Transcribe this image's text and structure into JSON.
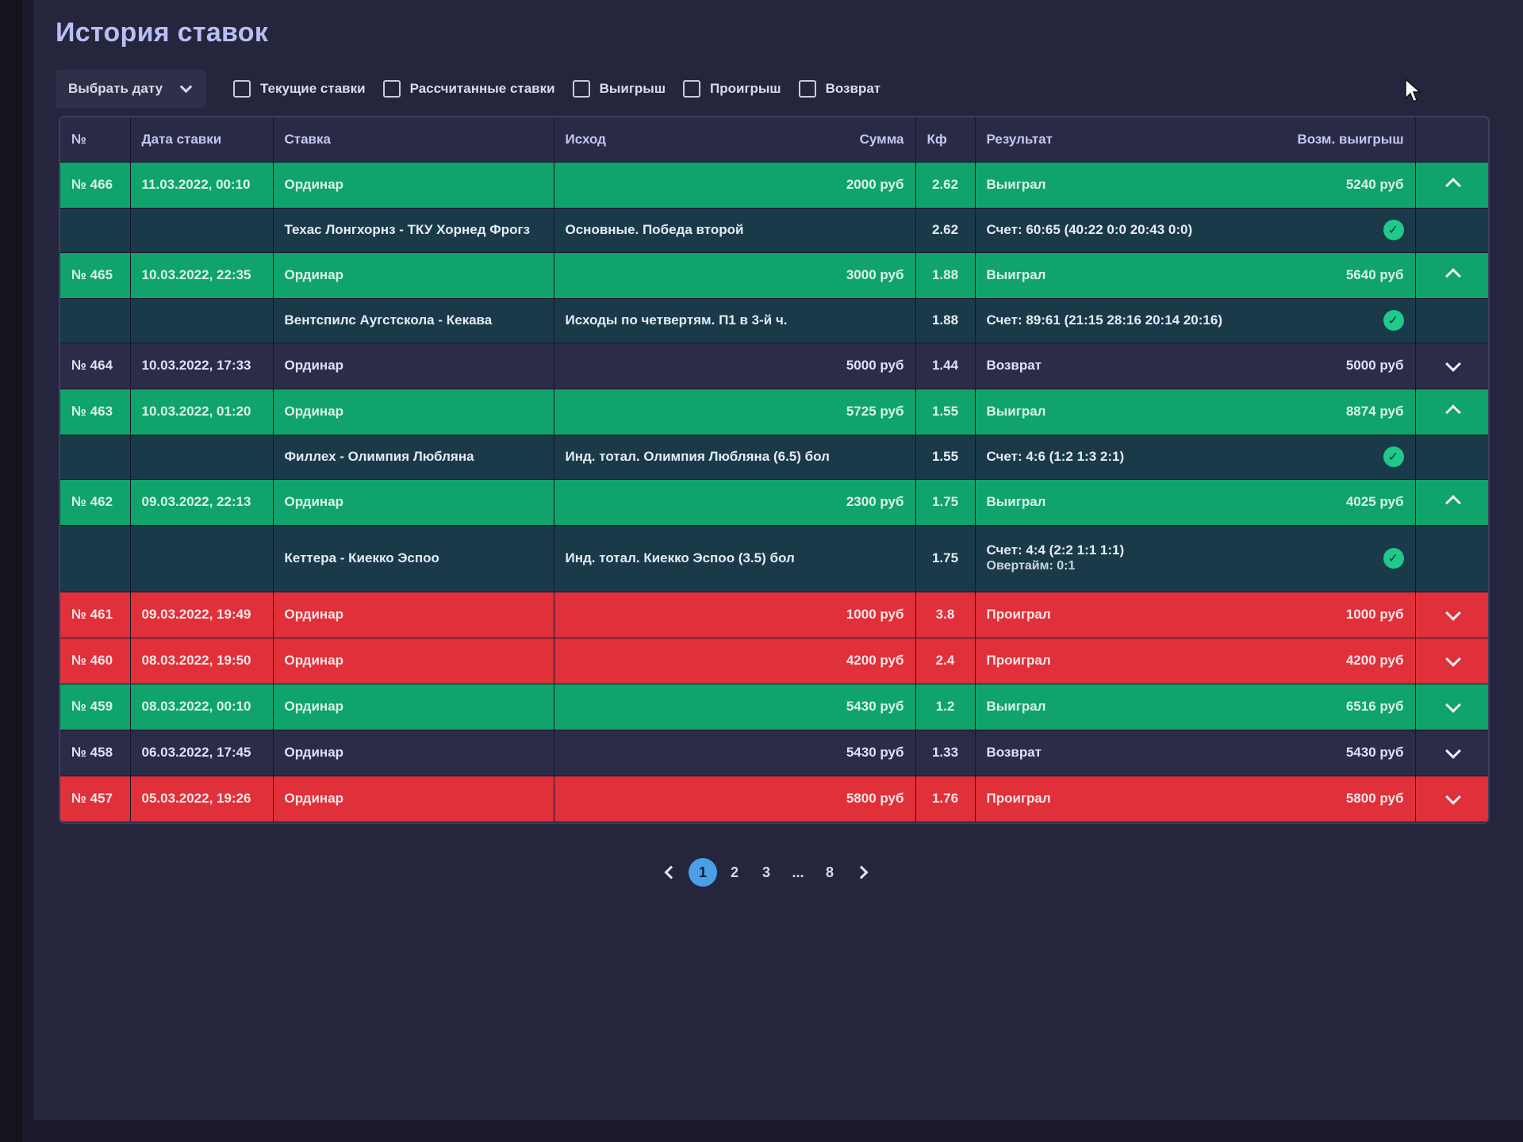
{
  "page": {
    "title": "История ставок"
  },
  "filters": {
    "date_select": "Выбрать дату",
    "checkboxes": [
      "Текущие ставки",
      "Рассчитанные ставки",
      "Выигрыш",
      "Проигрыш",
      "Возврат"
    ]
  },
  "table": {
    "headers": {
      "num": "№",
      "date": "Дата ставки",
      "bet": "Ставка",
      "outcome": "Исход",
      "sum": "Сумма",
      "coef": "Кф",
      "result": "Результат",
      "possible_win": "Возм. выигрыш"
    },
    "rows": [
      {
        "status": "won",
        "num": "№ 466",
        "date": "11.03.2022, 00:10",
        "type": "Ординар",
        "sum": "2000 руб",
        "coef": "2.62",
        "result": "Выиграл",
        "win": "5240 руб",
        "expanded": true,
        "detail": {
          "event": "Техас Лонгхорнз - ТКУ Хорнед Фрогз",
          "outcome": "Основные. Победа второй",
          "coef": "2.62",
          "score": "Счет: 60:65 (40:22 0:0 20:43 0:0)",
          "score_sub": ""
        }
      },
      {
        "status": "won",
        "num": "№ 465",
        "date": "10.03.2022, 22:35",
        "type": "Ординар",
        "sum": "3000 руб",
        "coef": "1.88",
        "result": "Выиграл",
        "win": "5640 руб",
        "expanded": true,
        "detail": {
          "event": "Вентспилс Аугстскола - Кекава",
          "outcome": "Исходы по четвертям. П1 в 3-й ч.",
          "coef": "1.88",
          "score": "Счет: 89:61 (21:15 28:16 20:14 20:16)",
          "score_sub": ""
        }
      },
      {
        "status": "ret",
        "num": "№ 464",
        "date": "10.03.2022, 17:33",
        "type": "Ординар",
        "sum": "5000 руб",
        "coef": "1.44",
        "result": "Возврат",
        "win": "5000 руб",
        "expanded": false
      },
      {
        "status": "won",
        "num": "№ 463",
        "date": "10.03.2022, 01:20",
        "type": "Ординар",
        "sum": "5725 руб",
        "coef": "1.55",
        "result": "Выиграл",
        "win": "8874 руб",
        "expanded": true,
        "detail": {
          "event": "Филлех - Олимпия Любляна",
          "outcome": "Инд. тотал. Олимпия Любляна (6.5) бол",
          "coef": "1.55",
          "score": "Счет: 4:6 (1:2 1:3 2:1)",
          "score_sub": ""
        }
      },
      {
        "status": "won",
        "num": "№ 462",
        "date": "09.03.2022, 22:13",
        "type": "Ординар",
        "sum": "2300 руб",
        "coef": "1.75",
        "result": "Выиграл",
        "win": "4025 руб",
        "expanded": true,
        "detail": {
          "event": "Кеттера - Киекко Эспоо",
          "outcome": "Инд. тотал. Киекко Эспоо (3.5) бол",
          "coef": "1.75",
          "score": "Счет: 4:4 (2:2 1:1 1:1)",
          "score_sub": "Овертайм: 0:1"
        }
      },
      {
        "status": "lost",
        "num": "№ 461",
        "date": "09.03.2022, 19:49",
        "type": "Ординар",
        "sum": "1000 руб",
        "coef": "3.8",
        "result": "Проиграл",
        "win": "1000 руб",
        "expanded": false
      },
      {
        "status": "lost",
        "num": "№ 460",
        "date": "08.03.2022, 19:50",
        "type": "Ординар",
        "sum": "4200 руб",
        "coef": "2.4",
        "result": "Проиграл",
        "win": "4200 руб",
        "expanded": false
      },
      {
        "status": "won",
        "num": "№ 459",
        "date": "08.03.2022, 00:10",
        "type": "Ординар",
        "sum": "5430 руб",
        "coef": "1.2",
        "result": "Выиграл",
        "win": "6516 руб",
        "expanded": false
      },
      {
        "status": "ret",
        "num": "№ 458",
        "date": "06.03.2022, 17:45",
        "type": "Ординар",
        "sum": "5430 руб",
        "coef": "1.33",
        "result": "Возврат",
        "win": "5430 руб",
        "expanded": false
      },
      {
        "status": "lost",
        "num": "№ 457",
        "date": "05.03.2022, 19:26",
        "type": "Ординар",
        "sum": "5800 руб",
        "coef": "1.76",
        "result": "Проиграл",
        "win": "5800 руб",
        "expanded": false
      }
    ]
  },
  "pagination": {
    "pages": [
      "1",
      "2",
      "3",
      "...",
      "8"
    ],
    "active": "1"
  },
  "colors": {
    "won": "#10a36c",
    "lost": "#e0303a",
    "return": "#2b2c48",
    "detail": "#1a3a4a",
    "accent": "#4a9fe6"
  },
  "icons": {
    "expanded": "chevron-up-icon",
    "collapsed": "chevron-down-icon",
    "settled": "check-circle-icon"
  }
}
